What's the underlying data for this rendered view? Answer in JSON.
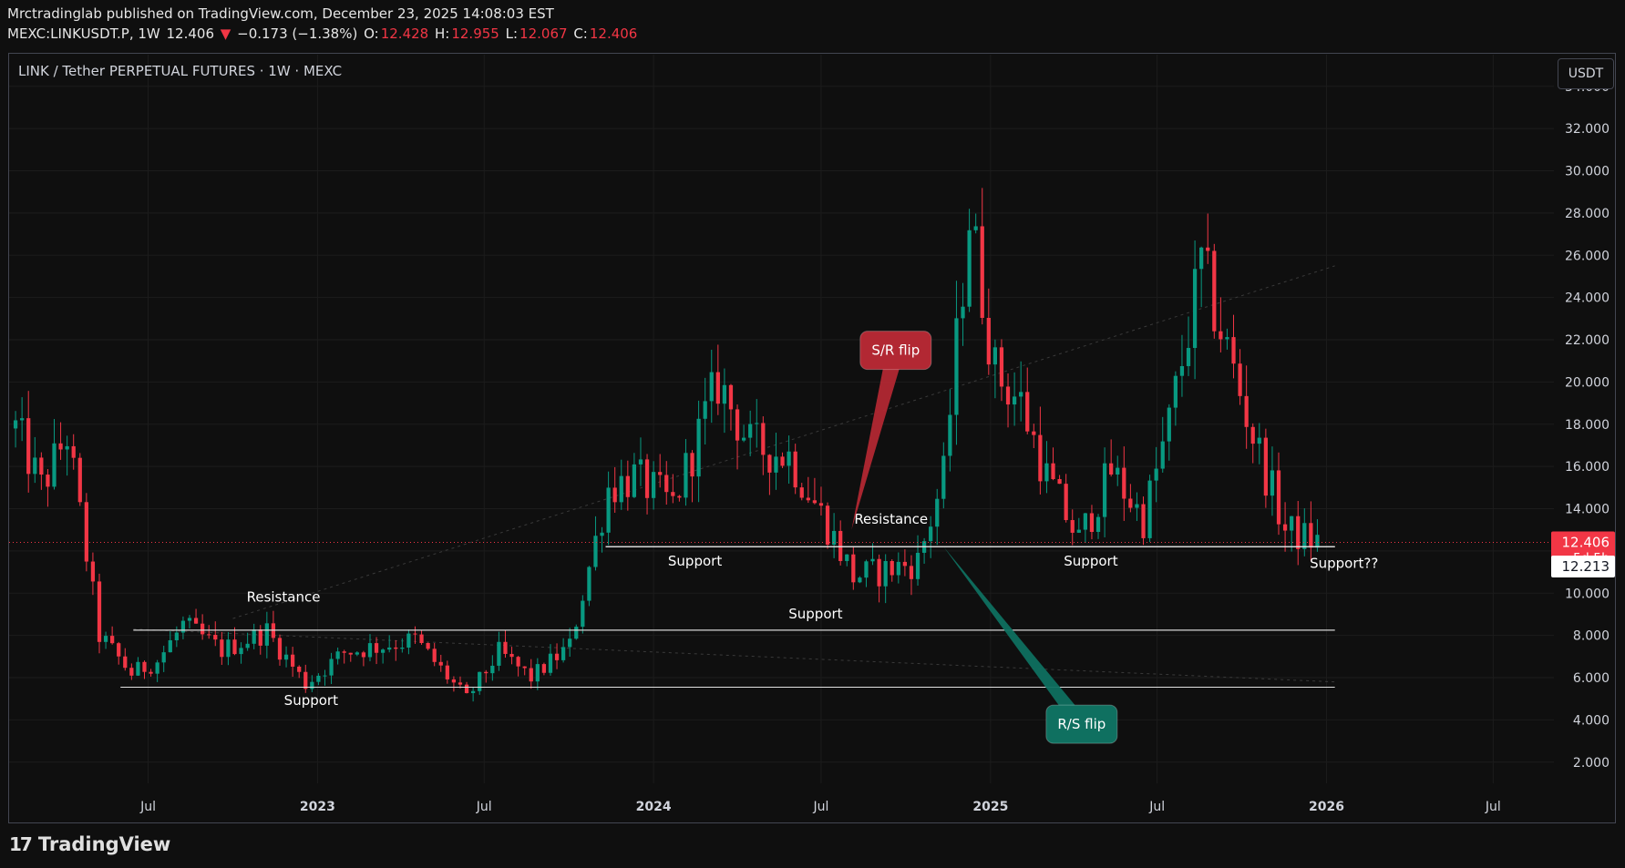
{
  "header": {
    "line1": "Mrctradinglab published on TradingView.com, December 23, 2025 14:08:03 EST",
    "symbol": "MEXC:LINKUSDT.P, 1W",
    "last": "12.406",
    "change_arrow": "▼",
    "change": "−0.173 (−1.38%)",
    "o_label": "O:",
    "o": "12.428",
    "h_label": "H:",
    "h": "12.955",
    "l_label": "L:",
    "l": "12.067",
    "c_label": "C:",
    "c": "12.406"
  },
  "chart_title": "LINK / Tether PERPETUAL FUTURES · 1W · MEXC",
  "currency_button": "USDT",
  "footer": {
    "brand": "TradingView",
    "mark": "17"
  },
  "colors": {
    "up": "#089981",
    "down": "#f23645",
    "background": "#0f0f0f",
    "grid": "#1c1c1c",
    "axis_text": "#d1d4dc"
  },
  "chart_data": {
    "type": "candlestick",
    "title": "LINK / Tether PERPETUAL FUTURES · 1W · MEXC",
    "interval": "1W",
    "y_axis": {
      "min": 1,
      "max": 35.5,
      "ticks": [
        "2.000",
        "4.000",
        "6.000",
        "8.000",
        "10.000",
        "12.000",
        "14.000",
        "16.000",
        "18.000",
        "20.000",
        "22.000",
        "24.000",
        "26.000",
        "28.000",
        "30.000",
        "32.000",
        "34.000"
      ],
      "side": "right"
    },
    "x_axis": {
      "start": "2022-01-31",
      "end": "2026-08-31",
      "ticks": [
        {
          "label": "Jul",
          "date": "2022-07-01"
        },
        {
          "label": "2023",
          "date": "2023-01-01",
          "bold": true
        },
        {
          "label": "Jul",
          "date": "2023-07-01"
        },
        {
          "label": "2024",
          "date": "2024-01-01",
          "bold": true
        },
        {
          "label": "Jul",
          "date": "2024-07-01"
        },
        {
          "label": "2025",
          "date": "2025-01-01",
          "bold": true
        },
        {
          "label": "Jul",
          "date": "2025-07-01"
        },
        {
          "label": "2026",
          "date": "2026-01-01",
          "bold": true
        },
        {
          "label": "Jul",
          "date": "2026-07-01"
        }
      ]
    },
    "grid": true,
    "price_scale_labels": [
      {
        "value": "12.406",
        "sub": "5d 5h",
        "price": 12.406,
        "bg": "#f23645",
        "color": "#ffffff"
      },
      {
        "value": "12.213",
        "price": 12.213,
        "bg": "#ffffff",
        "color": "#131722"
      }
    ],
    "current_price_line": 12.406,
    "keypoints": [
      {
        "date": "2022-02-07",
        "price": 17.8
      },
      {
        "date": "2022-03-07",
        "price": 15.0
      },
      {
        "date": "2022-04-04",
        "price": 17.5
      },
      {
        "date": "2022-05-09",
        "price": 8.0
      },
      {
        "date": "2022-06-13",
        "price": 6.2
      },
      {
        "date": "2022-07-11",
        "price": 6.8
      },
      {
        "date": "2022-08-08",
        "price": 8.5
      },
      {
        "date": "2022-09-19",
        "price": 7.3
      },
      {
        "date": "2022-11-07",
        "price": 8.2
      },
      {
        "date": "2022-12-19",
        "price": 5.7
      },
      {
        "date": "2023-01-30",
        "price": 7.2
      },
      {
        "date": "2023-04-17",
        "price": 7.8
      },
      {
        "date": "2023-06-12",
        "price": 5.0
      },
      {
        "date": "2023-07-17",
        "price": 7.2
      },
      {
        "date": "2023-08-21",
        "price": 6.0
      },
      {
        "date": "2023-10-02",
        "price": 7.5
      },
      {
        "date": "2023-11-13",
        "price": 15.0
      },
      {
        "date": "2023-12-11",
        "price": 15.5
      },
      {
        "date": "2024-01-22",
        "price": 14.2
      },
      {
        "date": "2024-03-11",
        "price": 20.0
      },
      {
        "date": "2024-04-15",
        "price": 17.0
      },
      {
        "date": "2024-05-27",
        "price": 16.5
      },
      {
        "date": "2024-07-08",
        "price": 13.2
      },
      {
        "date": "2024-08-05",
        "price": 10.8
      },
      {
        "date": "2024-09-02",
        "price": 11.0
      },
      {
        "date": "2024-10-14",
        "price": 11.5
      },
      {
        "date": "2024-11-11",
        "price": 15.5
      },
      {
        "date": "2024-12-09",
        "price": 28.0
      },
      {
        "date": "2025-01-06",
        "price": 20.5
      },
      {
        "date": "2025-02-03",
        "price": 19.0
      },
      {
        "date": "2025-03-03",
        "price": 15.5
      },
      {
        "date": "2025-04-07",
        "price": 12.5
      },
      {
        "date": "2025-05-12",
        "price": 15.8
      },
      {
        "date": "2025-06-16",
        "price": 13.5
      },
      {
        "date": "2025-07-14",
        "price": 18.0
      },
      {
        "date": "2025-08-18",
        "price": 25.5
      },
      {
        "date": "2025-09-15",
        "price": 21.5
      },
      {
        "date": "2025-10-13",
        "price": 17.5
      },
      {
        "date": "2025-11-17",
        "price": 13.0
      },
      {
        "date": "2025-12-22",
        "price": 12.406
      }
    ],
    "levels": [
      {
        "label": "Support",
        "price": 5.55,
        "from": "2022-06-01",
        "to": "2026-01-10",
        "text_date": "2022-12-25",
        "text_price": 4.7
      },
      {
        "label": "Resistance",
        "price": 8.25,
        "from": "2022-06-15",
        "to": "2026-01-10",
        "text_date": "2022-11-25",
        "text_price": 9.6
      },
      {
        "label": "Support",
        "price": 8.25,
        "from": "2022-06-15",
        "to": "2026-01-10",
        "text_date": "2024-06-25",
        "text_price": 8.8
      },
      {
        "label": "Support",
        "price": 12.2,
        "from": "2023-11-10",
        "to": "2026-01-10",
        "text_date": "2024-02-15",
        "text_price": 11.3
      },
      {
        "label": "Resistance",
        "price": 12.2,
        "from": "2023-11-10",
        "to": "2026-01-10",
        "text_date": "2024-09-15",
        "text_price": 13.3
      },
      {
        "label": "Support",
        "price": 12.2,
        "from": "2023-11-10",
        "to": "2026-01-10",
        "text_date": "2025-04-20",
        "text_price": 11.3
      },
      {
        "label": "Support??",
        "price": 12.2,
        "from": "2023-11-10",
        "to": "2026-01-10",
        "text_date": "2026-01-20",
        "text_price": 11.2
      }
    ],
    "callouts": [
      {
        "label": "S/R flip",
        "color": "#b22833",
        "box_date": "2024-09-20",
        "box_price": 21.5,
        "tip_date": "2024-08-03",
        "tip_price": 13.0
      },
      {
        "label": "R/S flip",
        "color": "#0f7060",
        "box_date": "2025-04-10",
        "box_price": 3.8,
        "tip_date": "2024-11-11",
        "tip_price": 12.2
      }
    ],
    "trend_lines": [
      {
        "from_date": "2022-10-01",
        "from_price": 8.8,
        "to_date": "2026-01-10",
        "to_price": 25.5
      },
      {
        "from_date": "2022-06-15",
        "from_price": 8.3,
        "to_date": "2026-01-10",
        "to_price": 5.8
      }
    ]
  }
}
